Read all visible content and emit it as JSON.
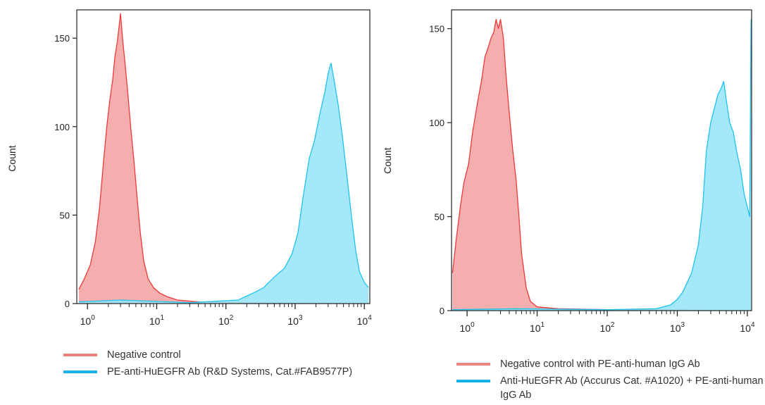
{
  "chart_data": [
    {
      "type": "area",
      "xscale": "log",
      "xlim": [
        0.7,
        12000
      ],
      "ylim": [
        0,
        166
      ],
      "ylabel": "Count",
      "yticks": [
        0,
        50,
        100,
        150
      ],
      "xtick_labels": [
        {
          "base": "10",
          "exp": "0"
        },
        {
          "base": "10",
          "exp": "1"
        },
        {
          "base": "10",
          "exp": "2"
        },
        {
          "base": "10",
          "exp": "3"
        },
        {
          "base": "10",
          "exp": "4"
        }
      ],
      "series": [
        {
          "name": "Negative control",
          "color": "#ee3a3a",
          "fill": "#f4a5a5",
          "points": [
            [
              0.75,
              8
            ],
            [
              0.9,
              14
            ],
            [
              1.1,
              22
            ],
            [
              1.3,
              35
            ],
            [
              1.5,
              55
            ],
            [
              1.7,
              80
            ],
            [
              1.9,
              100
            ],
            [
              2.1,
              115
            ],
            [
              2.3,
              126
            ],
            [
              2.5,
              140
            ],
            [
              2.7,
              148
            ],
            [
              2.85,
              156
            ],
            [
              3.0,
              164
            ],
            [
              3.2,
              150
            ],
            [
              3.5,
              135
            ],
            [
              3.8,
              120
            ],
            [
              4.2,
              100
            ],
            [
              4.7,
              80
            ],
            [
              5.2,
              60
            ],
            [
              5.8,
              40
            ],
            [
              6.5,
              24
            ],
            [
              7.5,
              14
            ],
            [
              9,
              9
            ],
            [
              11,
              6
            ],
            [
              14,
              4
            ],
            [
              20,
              2
            ],
            [
              40,
              1
            ],
            [
              100,
              0.5
            ],
            [
              1000,
              0.3
            ],
            [
              10000,
              0
            ]
          ]
        },
        {
          "name": "PE-anti-HuEGFR Ab (R&D Systems, Cat.#FAB9577P)",
          "color": "#1fc3ef",
          "fill": "#9be6fa",
          "points": [
            [
              0.75,
              1
            ],
            [
              3,
              2
            ],
            [
              30,
              0.5
            ],
            [
              150,
              2
            ],
            [
              250,
              6
            ],
            [
              350,
              9
            ],
            [
              500,
              15
            ],
            [
              700,
              20
            ],
            [
              900,
              28
            ],
            [
              1100,
              40
            ],
            [
              1300,
              60
            ],
            [
              1600,
              82
            ],
            [
              1900,
              92
            ],
            [
              2300,
              108
            ],
            [
              2700,
              120
            ],
            [
              3000,
              130
            ],
            [
              3300,
              136
            ],
            [
              3700,
              125
            ],
            [
              4200,
              112
            ],
            [
              4800,
              95
            ],
            [
              5500,
              75
            ],
            [
              6500,
              50
            ],
            [
              7500,
              30
            ],
            [
              8500,
              18
            ],
            [
              10000,
              12
            ],
            [
              11500,
              9
            ]
          ]
        }
      ],
      "legend": [
        {
          "label": "Negative control",
          "color": "#e8847f"
        },
        {
          "label": "PE-anti-HuEGFR Ab (R&D Systems, Cat.#FAB9577P)",
          "color": "#16b4ea"
        }
      ]
    },
    {
      "type": "area",
      "xscale": "log",
      "xlim": [
        0.6,
        11500
      ],
      "ylim": [
        0,
        160
      ],
      "ylabel": "Count",
      "yticks": [
        0,
        50,
        100,
        150
      ],
      "xtick_labels": [
        {
          "base": "10",
          "exp": "0"
        },
        {
          "base": "10",
          "exp": "1"
        },
        {
          "base": "10",
          "exp": "2"
        },
        {
          "base": "10",
          "exp": "3"
        },
        {
          "base": "10",
          "exp": "4"
        }
      ],
      "series": [
        {
          "name": "Negative control with PE-anti-human IgG Ab",
          "color": "#ee3a3a",
          "fill": "#f4a5a5",
          "points": [
            [
              0.62,
              20
            ],
            [
              0.7,
              38
            ],
            [
              0.8,
              55
            ],
            [
              0.9,
              68
            ],
            [
              1.05,
              78
            ],
            [
              1.2,
              95
            ],
            [
              1.4,
              110
            ],
            [
              1.6,
              122
            ],
            [
              1.8,
              135
            ],
            [
              2.0,
              140
            ],
            [
              2.2,
              145
            ],
            [
              2.4,
              148
            ],
            [
              2.6,
              155
            ],
            [
              2.8,
              150
            ],
            [
              3.0,
              155
            ],
            [
              3.3,
              145
            ],
            [
              3.6,
              125
            ],
            [
              4.0,
              105
            ],
            [
              4.5,
              85
            ],
            [
              5.0,
              70
            ],
            [
              5.5,
              50
            ],
            [
              6.0,
              30
            ],
            [
              7.0,
              12
            ],
            [
              8.0,
              5
            ],
            [
              10,
              2
            ],
            [
              20,
              1
            ],
            [
              100,
              0.5
            ],
            [
              1000,
              0.3
            ],
            [
              11000,
              0
            ]
          ]
        },
        {
          "name": "Anti-HuEGFR Ab (Accurus Cat. #A1020) + PE-anti-human IgG Ab",
          "color": "#1fc3ef",
          "fill": "#9be6fa",
          "points": [
            [
              0.62,
              0.5
            ],
            [
              5,
              1
            ],
            [
              100,
              0.5
            ],
            [
              500,
              1
            ],
            [
              800,
              3
            ],
            [
              1000,
              6
            ],
            [
              1200,
              10
            ],
            [
              1600,
              20
            ],
            [
              2000,
              35
            ],
            [
              2300,
              55
            ],
            [
              2600,
              85
            ],
            [
              3000,
              100
            ],
            [
              3400,
              108
            ],
            [
              3800,
              115
            ],
            [
              4200,
              118
            ],
            [
              4600,
              122
            ],
            [
              5000,
              112
            ],
            [
              5600,
              100
            ],
            [
              6300,
              95
            ],
            [
              7000,
              85
            ],
            [
              8000,
              75
            ],
            [
              9000,
              62
            ],
            [
              10000,
              55
            ],
            [
              10800,
              50
            ],
            [
              11300,
              155
            ]
          ]
        }
      ],
      "legend": [
        {
          "label": "Negative control with PE-anti-human IgG Ab",
          "color": "#e8847f"
        },
        {
          "label": "Anti-HuEGFR Ab (Accurus Cat. #A1020) + PE-anti-human IgG Ab",
          "color": "#16b4ea"
        }
      ]
    }
  ]
}
